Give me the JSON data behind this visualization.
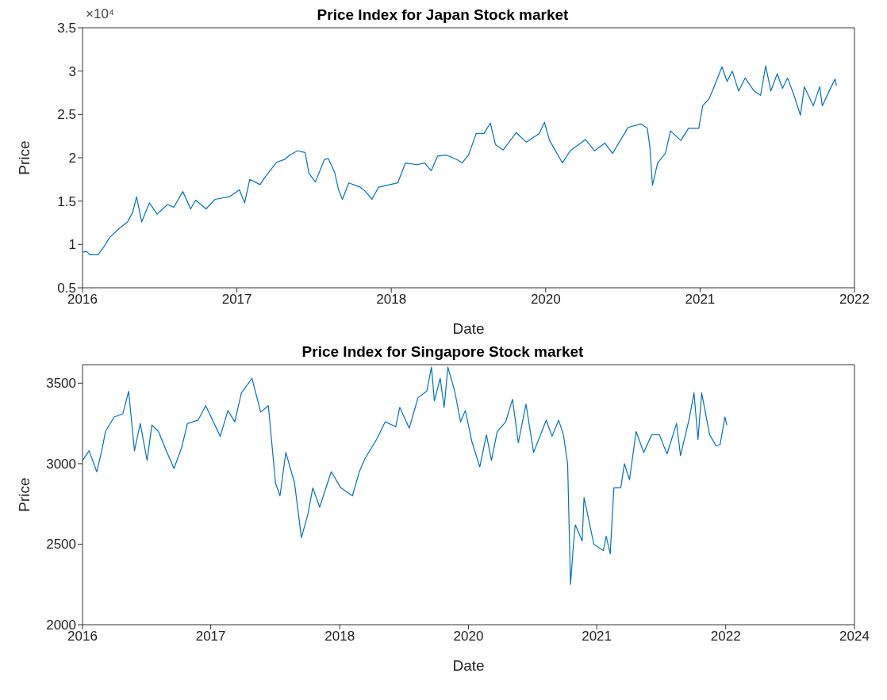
{
  "chart_data": [
    {
      "type": "line",
      "title": "Price Index for Japan Stock market",
      "xlabel": "Date",
      "ylabel": "Price",
      "annotations": [
        "×10⁴"
      ],
      "color": "#0072bd",
      "x": [
        2016.0,
        2016.03,
        2016.06,
        2016.12,
        2016.17,
        2016.21,
        2016.29,
        2016.35,
        2016.39,
        2016.42,
        2016.46,
        2016.52,
        2016.58,
        2016.66,
        2016.71,
        2016.78,
        2016.84,
        2016.88,
        2016.96,
        2017.03,
        2017.14,
        2017.22,
        2017.26,
        2017.3,
        2017.38,
        2017.42,
        2017.51,
        2017.57,
        2017.61,
        2017.67,
        2017.73,
        2017.76,
        2017.81,
        2017.88,
        2017.91,
        2017.96,
        2017.99,
        2018.02,
        2018.07,
        2018.16,
        2018.2,
        2018.25,
        2018.3,
        2018.45,
        2018.51,
        2018.6,
        2018.66,
        2018.71,
        2018.76,
        2018.83,
        2018.91,
        2018.95,
        2019.0,
        2019.06,
        2019.12,
        2019.17,
        2019.21,
        2019.27,
        2019.37,
        2019.45,
        2019.55,
        2019.59,
        2019.63,
        2019.73,
        2019.79,
        2019.91,
        2019.98,
        2020.06,
        2020.12,
        2020.18,
        2020.24,
        2020.34,
        2020.39,
        2020.41,
        2020.43,
        2020.47,
        2020.53,
        2020.57,
        2020.65,
        2020.71,
        2020.79,
        2020.82,
        2020.87,
        2020.92,
        2020.97,
        2021.01,
        2021.05,
        2021.1,
        2021.15,
        2021.22,
        2021.27,
        2021.31,
        2021.35,
        2021.4,
        2021.44,
        2021.48,
        2021.53,
        2021.58,
        2021.61,
        2021.68,
        2021.73,
        2021.75,
        2021.81,
        2021.85,
        2021.86
      ],
      "values": [
        0.91,
        0.92,
        0.88,
        0.88,
        0.98,
        1.08,
        1.19,
        1.26,
        1.37,
        1.55,
        1.26,
        1.48,
        1.35,
        1.46,
        1.43,
        1.61,
        1.41,
        1.51,
        1.41,
        1.52,
        1.55,
        1.63,
        1.48,
        1.75,
        1.69,
        1.78,
        1.95,
        1.98,
        2.03,
        2.08,
        2.06,
        1.82,
        1.72,
        1.98,
        1.99,
        1.83,
        1.63,
        1.52,
        1.71,
        1.66,
        1.61,
        1.52,
        1.66,
        1.71,
        1.94,
        1.92,
        1.94,
        1.85,
        2.02,
        2.03,
        1.98,
        1.94,
        2.03,
        2.28,
        2.28,
        2.4,
        2.15,
        2.09,
        2.29,
        2.18,
        2.28,
        2.41,
        2.2,
        1.94,
        2.08,
        2.21,
        2.08,
        2.17,
        2.05,
        2.2,
        2.35,
        2.39,
        2.34,
        2.12,
        1.68,
        1.94,
        2.05,
        2.31,
        2.2,
        2.34,
        2.34,
        2.6,
        2.68,
        2.86,
        3.05,
        2.88,
        3.0,
        2.77,
        2.92,
        2.77,
        2.72,
        3.06,
        2.77,
        2.97,
        2.8,
        2.92,
        2.72,
        2.49,
        2.82,
        2.6,
        2.82,
        2.6,
        2.79,
        2.91,
        2.83
      ],
      "xlim": [
        2016,
        2022
      ],
      "xticks": [
        2016,
        {
          "value": 2017.2,
          "label": "2017"
        },
        {
          "value": 2018.4,
          "label": "2018"
        },
        {
          "value": 2019.6,
          "label": "2020"
        },
        {
          "value": 2020.8,
          "label": "2021"
        },
        2022
      ],
      "ylim": [
        0.5,
        3.5
      ],
      "yticks": [
        0.5,
        1,
        1.5,
        2,
        2.5,
        3,
        3.5
      ]
    },
    {
      "type": "line",
      "title": "Price Index for Singapore Stock market",
      "xlabel": "Date",
      "ylabel": "Price",
      "color": "#0072bd",
      "x": [
        "2016-01-01",
        "2016-01-26",
        "2016-02-24",
        "2016-03-14",
        "2016-03-28",
        "2016-04-30",
        "2016-06-02",
        "2016-06-24",
        "2016-07-16",
        "2016-08-07",
        "2016-09-02",
        "2016-09-20",
        "2016-10-15",
        "2016-11-14",
        "2016-12-13",
        "2017-01-11",
        "2017-02-02",
        "2017-03-14",
        "2017-04-12",
        "2017-06-06",
        "2017-07-05",
        "2017-07-31",
        "2017-08-25",
        "2017-10-04",
        "2017-11-06",
        "2017-12-05",
        "2018-01-01",
        "2018-01-18",
        "2018-02-09",
        "2018-03-14",
        "2018-04-09",
        "2018-05-04",
        "2018-05-22",
        "2018-06-17",
        "2018-07-31",
        "2018-09-05",
        "2018-10-19",
        "2018-11-14",
        "2018-12-05",
        "2019-01-18",
        "2019-02-20",
        "2019-04-01",
        "2019-04-16",
        "2019-05-22",
        "2019-06-24",
        "2019-07-27",
        "2019-08-14",
        "2019-08-25",
        "2019-09-16",
        "2019-10-01",
        "2019-10-15",
        "2019-11-10",
        "2019-12-02",
        "2019-12-20",
        "2020-01-15",
        "2020-02-13",
        "2020-03-09",
        "2020-03-28",
        "2020-04-19",
        "2020-05-21",
        "2020-06-16",
        "2020-07-08",
        "2020-08-06",
        "2020-09-04",
        "2020-10-22",
        "2020-11-13",
        "2020-12-08",
        "2020-12-26",
        "2021-01-11",
        "2021-01-22",
        "2021-02-02",
        "2021-02-09",
        "2021-03-07",
        "2021-03-14",
        "2021-04-01",
        "2021-04-20",
        "2021-05-26",
        "2021-06-06",
        "2021-06-21",
        "2021-07-05",
        "2021-07-31",
        "2021-08-14",
        "2021-09-02",
        "2021-09-27",
        "2021-10-26",
        "2021-11-25",
        "2021-12-24",
        "2022-01-22",
        "2022-02-27",
        "2022-03-14",
        "2022-04-16",
        "2022-05-04",
        "2022-05-19",
        "2022-06-02",
        "2022-07-02",
        "2022-07-27",
        "2022-08-11",
        "2022-08-29",
        "2022-09-05"
      ],
      "values": [
        3020,
        3080,
        2950,
        3080,
        3200,
        3290,
        3310,
        3450,
        3080,
        3250,
        3020,
        3240,
        3200,
        3080,
        2970,
        3100,
        3250,
        3270,
        3360,
        3170,
        3330,
        3260,
        3440,
        3530,
        3320,
        3360,
        2880,
        2800,
        3070,
        2880,
        2540,
        2690,
        2850,
        2730,
        2950,
        2850,
        2800,
        2950,
        3030,
        3150,
        3260,
        3230,
        3350,
        3220,
        3410,
        3450,
        3600,
        3390,
        3530,
        3350,
        3600,
        3450,
        3260,
        3330,
        3130,
        2980,
        3180,
        3020,
        3200,
        3260,
        3400,
        3130,
        3370,
        3070,
        3270,
        3170,
        3270,
        3180,
        3000,
        2250,
        2500,
        2620,
        2520,
        2790,
        2650,
        2500,
        2460,
        2550,
        2440,
        2850,
        2850,
        3000,
        2900,
        3200,
        3070,
        3180,
        3180,
        3060,
        3250,
        3050,
        3280,
        3440,
        3150,
        3440,
        3180,
        3110,
        3120,
        3290,
        3240
      ],
      "xlim": [
        "2016-01-01",
        "2024-01-01"
      ],
      "xticks": [
        {
          "value": "2016-01-01",
          "label": "2016"
        },
        {
          "value": "2017-05-01",
          "label": "2017"
        },
        {
          "value": "2018-09-01",
          "label": "2018"
        },
        {
          "value": "2020-01-01",
          "label": "2020"
        },
        {
          "value": "2021-05-01",
          "label": "2021"
        },
        {
          "value": "2022-09-01",
          "label": "2022"
        },
        {
          "value": "2024-01-01",
          "label": "2024"
        }
      ],
      "ylim": [
        2000,
        3615
      ],
      "yticks": [
        2000,
        2500,
        3000,
        3500
      ]
    }
  ]
}
